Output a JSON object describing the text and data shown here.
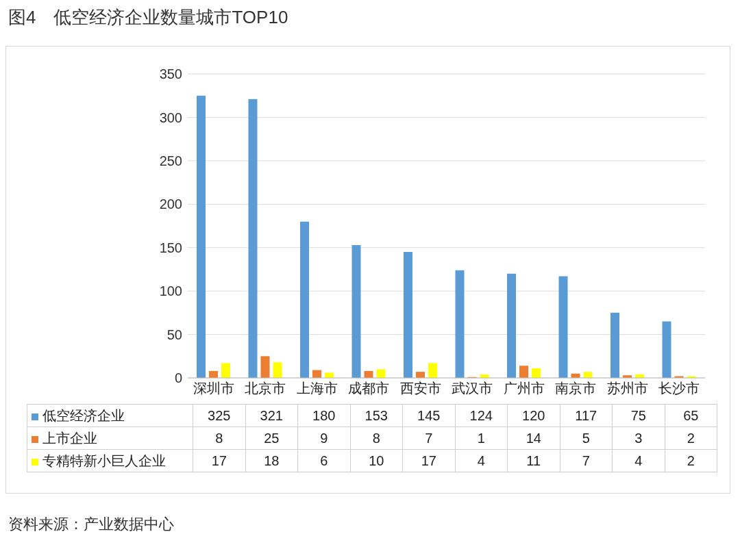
{
  "chart_data": {
    "type": "bar",
    "title": "图4　低空经济企业数量城市TOP10",
    "categories": [
      "深圳市",
      "北京市",
      "上海市",
      "成都市",
      "西安市",
      "武汉市",
      "广州市",
      "南京市",
      "苏州市",
      "长沙市"
    ],
    "series": [
      {
        "name": "低空经济企业",
        "color": "#5b9bd5",
        "values": [
          325,
          321,
          180,
          153,
          145,
          124,
          120,
          117,
          75,
          65
        ]
      },
      {
        "name": "上市企业",
        "color": "#ed7d31",
        "values": [
          8,
          25,
          9,
          8,
          7,
          1,
          14,
          5,
          3,
          2
        ]
      },
      {
        "name": "专精特新小巨人企业",
        "color": "#ffff00",
        "values": [
          17,
          18,
          6,
          10,
          17,
          4,
          11,
          7,
          4,
          2
        ]
      }
    ],
    "ylim": [
      0,
      350
    ],
    "yticks": [
      0,
      50,
      100,
      150,
      200,
      250,
      300,
      350
    ],
    "grid": "y",
    "legend": "bottom",
    "data_labels": true,
    "annotations": [
      "资料来源：产业数据中心"
    ]
  }
}
